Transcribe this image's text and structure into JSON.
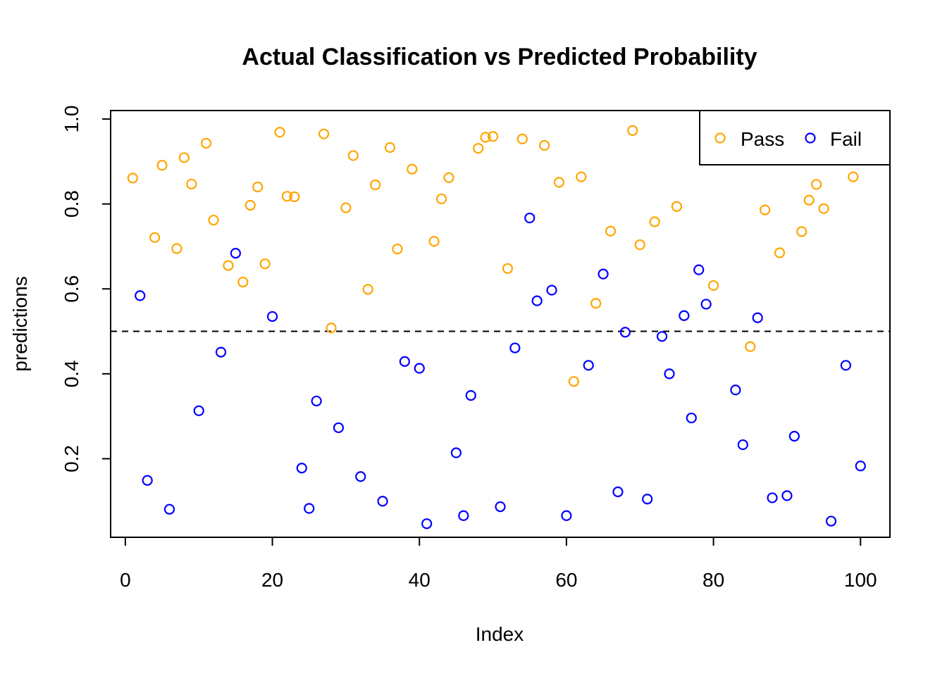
{
  "chart_data": {
    "type": "scatter",
    "title": "Actual Classification vs Predicted Probability",
    "xlabel": "Index",
    "ylabel": "predictions",
    "xlim": [
      -2,
      104
    ],
    "ylim": [
      0.015,
      1.02
    ],
    "xticks": [
      0,
      20,
      40,
      60,
      80,
      100
    ],
    "xtick_labels": [
      "0",
      "20",
      "40",
      "60",
      "80",
      "100"
    ],
    "yticks": [
      0.2,
      0.4,
      0.6,
      0.8,
      1.0
    ],
    "ytick_labels": [
      "0.2",
      "0.4",
      "0.6",
      "0.8",
      "1.0"
    ],
    "threshold": 0.5,
    "grid": false,
    "legend": {
      "placement": "top-right"
    },
    "series": [
      {
        "name": "Pass",
        "color": "#FFA500",
        "points": [
          [
            1,
            0.861
          ],
          [
            4,
            0.721
          ],
          [
            5,
            0.891
          ],
          [
            7,
            0.695
          ],
          [
            8,
            0.909
          ],
          [
            9,
            0.847
          ],
          [
            11,
            0.943
          ],
          [
            12,
            0.762
          ],
          [
            14,
            0.655
          ],
          [
            16,
            0.616
          ],
          [
            17,
            0.797
          ],
          [
            18,
            0.84
          ],
          [
            19,
            0.659
          ],
          [
            21,
            0.969
          ],
          [
            22,
            0.818
          ],
          [
            23,
            0.817
          ],
          [
            27,
            0.965
          ],
          [
            28,
            0.508
          ],
          [
            30,
            0.791
          ],
          [
            31,
            0.914
          ],
          [
            33,
            0.599
          ],
          [
            34,
            0.845
          ],
          [
            36,
            0.933
          ],
          [
            37,
            0.694
          ],
          [
            39,
            0.882
          ],
          [
            42,
            0.712
          ],
          [
            43,
            0.812
          ],
          [
            44,
            0.862
          ],
          [
            48,
            0.931
          ],
          [
            49,
            0.957
          ],
          [
            50,
            0.959
          ],
          [
            52,
            0.648
          ],
          [
            54,
            0.953
          ],
          [
            57,
            0.938
          ],
          [
            59,
            0.851
          ],
          [
            61,
            0.382
          ],
          [
            62,
            0.864
          ],
          [
            64,
            0.566
          ],
          [
            66,
            0.736
          ],
          [
            69,
            0.973
          ],
          [
            70,
            0.704
          ],
          [
            72,
            0.758
          ],
          [
            75,
            0.794
          ],
          [
            80,
            0.608
          ],
          [
            85,
            0.464
          ],
          [
            87,
            0.786
          ],
          [
            89,
            0.685
          ],
          [
            92,
            0.735
          ],
          [
            93,
            0.809
          ],
          [
            94,
            0.846
          ],
          [
            95,
            0.789
          ],
          [
            99,
            0.864
          ]
        ]
      },
      {
        "name": "Fail",
        "color": "#0000FF",
        "points": [
          [
            2,
            0.584
          ],
          [
            3,
            0.149
          ],
          [
            6,
            0.081
          ],
          [
            10,
            0.313
          ],
          [
            13,
            0.451
          ],
          [
            15,
            0.684
          ],
          [
            20,
            0.535
          ],
          [
            24,
            0.178
          ],
          [
            25,
            0.083
          ],
          [
            26,
            0.336
          ],
          [
            29,
            0.273
          ],
          [
            32,
            0.158
          ],
          [
            35,
            0.1
          ],
          [
            38,
            0.429
          ],
          [
            40,
            0.413
          ],
          [
            41,
            0.047
          ],
          [
            45,
            0.214
          ],
          [
            46,
            0.066
          ],
          [
            47,
            0.349
          ],
          [
            51,
            0.087
          ],
          [
            53,
            0.461
          ],
          [
            55,
            0.767
          ],
          [
            56,
            0.572
          ],
          [
            58,
            0.597
          ],
          [
            60,
            0.066
          ],
          [
            63,
            0.42
          ],
          [
            65,
            0.635
          ],
          [
            67,
            0.122
          ],
          [
            68,
            0.498
          ],
          [
            71,
            0.105
          ],
          [
            73,
            0.488
          ],
          [
            74,
            0.4
          ],
          [
            76,
            0.537
          ],
          [
            77,
            0.296
          ],
          [
            78,
            0.645
          ],
          [
            79,
            0.564
          ],
          [
            83,
            0.362
          ],
          [
            84,
            0.233
          ],
          [
            86,
            0.532
          ],
          [
            88,
            0.108
          ],
          [
            90,
            0.113
          ],
          [
            91,
            0.253
          ],
          [
            96,
            0.053
          ],
          [
            98,
            0.42
          ],
          [
            100,
            0.183
          ]
        ]
      }
    ]
  }
}
